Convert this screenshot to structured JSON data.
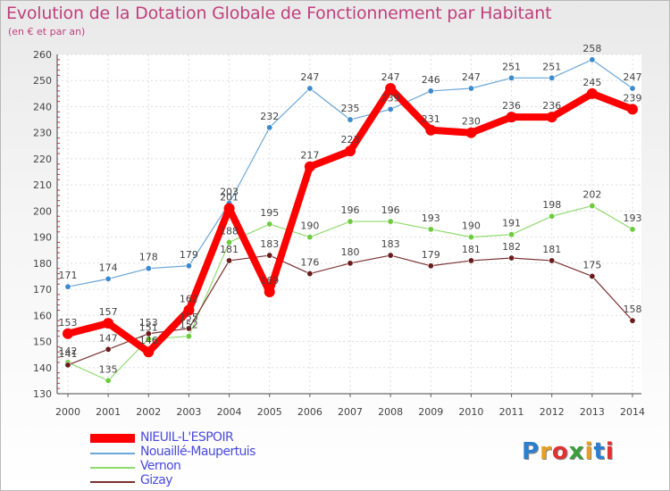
{
  "title": "Evolution de la Dotation Globale de Fonctionnement par Habitant",
  "subtitle": "(en € et par an)",
  "logo": {
    "text": "Proxiti",
    "colors": [
      "#2a7fd0",
      "#e8a020",
      "#e03030",
      "#3a9f3a",
      "#e8a020",
      "#2a7fd0",
      "#e03030"
    ]
  },
  "chart_data": {
    "type": "line",
    "x": [
      "2000",
      "2001",
      "2002",
      "2003",
      "2004",
      "2005",
      "2006",
      "2007",
      "2008",
      "2009",
      "2010",
      "2011",
      "2012",
      "2013",
      "2014"
    ],
    "ylim": [
      130,
      260
    ],
    "yticks": [
      130,
      140,
      150,
      160,
      170,
      180,
      190,
      200,
      210,
      220,
      230,
      240,
      250,
      260
    ],
    "grid": true,
    "legend_position": "bottom-left",
    "series": [
      {
        "name": "NIEUIL-L'ESPOIR",
        "color": "#ff0000",
        "width": 8,
        "values": [
          153,
          157,
          146,
          162,
          201,
          169,
          217,
          223,
          247,
          231,
          230,
          236,
          236,
          245,
          239
        ],
        "labels": [
          "153",
          "157",
          "146",
          "162",
          "201",
          "169",
          "217",
          "223",
          "247",
          "231",
          "230",
          "236",
          "236",
          "245",
          "239"
        ]
      },
      {
        "name": "Nouaillé-Maupertuis",
        "color": "#6aa6d6",
        "width": 1.2,
        "dot": "#3a8ad0",
        "values": [
          171,
          174,
          178,
          179,
          203,
          232,
          247,
          235,
          239,
          246,
          247,
          251,
          251,
          258,
          247
        ],
        "labels": [
          "171",
          "174",
          "178",
          "179",
          "203",
          "232",
          "247",
          "235",
          "239",
          "246",
          "247",
          "251",
          "251",
          "258",
          "247"
        ]
      },
      {
        "name": "Vernon",
        "color": "#8fdb6e",
        "width": 1.2,
        "dot": "#6ccc3c",
        "values": [
          142,
          135,
          151,
          152,
          188,
          195,
          190,
          196,
          196,
          193,
          190,
          191,
          198,
          202,
          193
        ],
        "labels": [
          "142",
          "135",
          "151",
          "152",
          "188",
          "195",
          "190",
          "196",
          "196",
          "193",
          "190",
          "191",
          "198",
          "202",
          "193"
        ]
      },
      {
        "name": "Gizay",
        "color": "#7a3030",
        "width": 1.2,
        "dot": "#6a1c1c",
        "values": [
          141,
          147,
          153,
          155,
          181,
          183,
          176,
          180,
          183,
          179,
          181,
          182,
          181,
          175,
          158
        ],
        "labels": [
          "141",
          "147",
          "153",
          "155",
          "181",
          "183",
          "176",
          "180",
          "183",
          "179",
          "181",
          "182",
          "181",
          "175",
          "158"
        ]
      }
    ]
  }
}
